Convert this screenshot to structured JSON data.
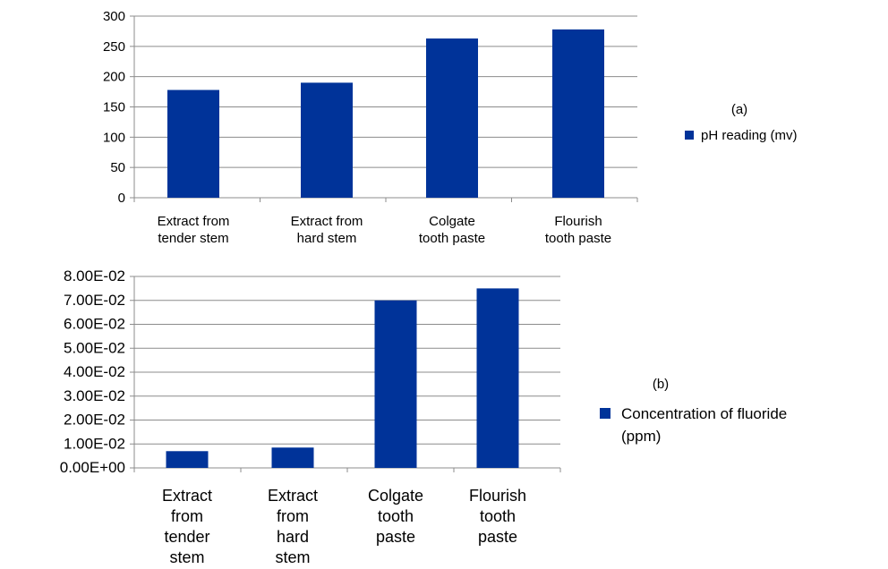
{
  "chart_data": [
    {
      "type": "bar",
      "panel_label": "(a)",
      "categories": [
        "Extract from tender stem",
        "Extract from hard stem",
        "Colgate tooth paste",
        "Flourish tooth paste"
      ],
      "category_lines": [
        [
          "Extract from",
          "tender stem"
        ],
        [
          "Extract from",
          "hard stem"
        ],
        [
          "Colgate",
          "tooth paste"
        ],
        [
          "Flourish",
          "tooth paste"
        ]
      ],
      "series": [
        {
          "name": "pH reading (mv)",
          "values": [
            178,
            190,
            263,
            278
          ],
          "color": "#003399"
        }
      ],
      "ylim": [
        0,
        300
      ],
      "yticks": [
        0,
        50,
        100,
        150,
        200,
        250,
        300
      ],
      "ytick_labels": [
        "0",
        "50",
        "100",
        "150",
        "200",
        "250",
        "300"
      ],
      "grid": true,
      "legend": "right"
    },
    {
      "type": "bar",
      "panel_label": "(b)",
      "categories": [
        "Extract from tender stem",
        "Extract from hard stem",
        "Colgate tooth paste",
        "Flourish tooth paste"
      ],
      "category_lines": [
        [
          "Extract",
          "from",
          "tender",
          "stem"
        ],
        [
          "Extract",
          "from",
          "hard",
          "stem"
        ],
        [
          "Colgate",
          "tooth",
          "paste"
        ],
        [
          "Flourish",
          "tooth",
          "paste"
        ]
      ],
      "series": [
        {
          "name": "Concentration of fluoride (ppm)",
          "name_lines": [
            "Concentration of fluoride",
            "(ppm)"
          ],
          "values": [
            0.007,
            0.0085,
            0.07,
            0.075
          ],
          "color": "#003399"
        }
      ],
      "ylim": [
        0,
        0.08
      ],
      "yticks": [
        0,
        0.01,
        0.02,
        0.03,
        0.04,
        0.05,
        0.06,
        0.07,
        0.08
      ],
      "ytick_labels": [
        "0.00E+00",
        "1.00E-02",
        "2.00E-02",
        "3.00E-02",
        "4.00E-02",
        "5.00E-02",
        "6.00E-02",
        "7.00E-02",
        "8.00E-02"
      ],
      "grid": true,
      "legend": "right"
    }
  ]
}
